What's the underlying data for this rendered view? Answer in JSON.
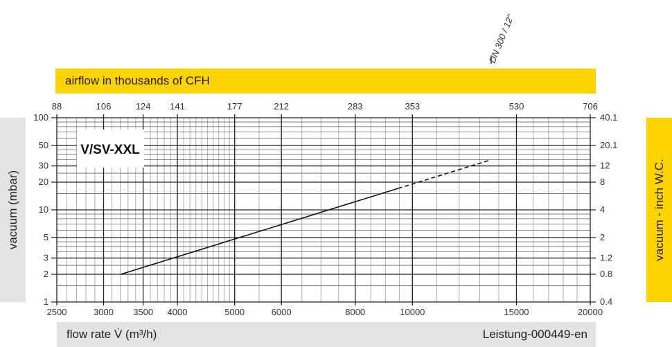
{
  "annotation": "DN 300 / 12\"",
  "top_band_label": "airflow in thousands of CFH",
  "left_band_label": "vacuum (mbar)",
  "right_band_label": "vacuum  - inch W.C.",
  "bottom_label": "flow rate V̇ (m³/h)",
  "doc_id": "Leistung-000449-en",
  "colors": {
    "accent_yellow": "#fdd400",
    "band_gray": "#e3e3e3",
    "line": "#111111"
  },
  "chart_data": {
    "type": "line",
    "title": "V/SV-XXL",
    "xlabel": "flow rate V̇ (m³/h)",
    "ylabel": "vacuum (mbar)",
    "x_scale": "log",
    "y_scale": "log",
    "xlim": [
      2500,
      20000
    ],
    "ylim": [
      1,
      100
    ],
    "grid": true,
    "x_ticks": [
      2500,
      3000,
      3500,
      4000,
      5000,
      6000,
      8000,
      10000,
      15000,
      20000
    ],
    "y_ticks": [
      1,
      2,
      3,
      5,
      10,
      20,
      30,
      50,
      100
    ],
    "top_axis": {
      "label": "airflow in thousands of CFH",
      "ticks": [
        "88",
        "106",
        "124",
        "141",
        "177",
        "212",
        "283",
        "353",
        "530",
        "706"
      ]
    },
    "right_axis": {
      "label": "vacuum  - inch W.C.",
      "ticks": [
        "0.4",
        "0.8",
        "1.2",
        "2",
        "4",
        "8",
        "12",
        "20.1",
        "40.1"
      ]
    },
    "series": [
      {
        "style": "solid",
        "x": [
          3210,
          9460
        ],
        "y": [
          2.0,
          17.1
        ]
      },
      {
        "style": "dashed",
        "x": [
          9460,
          13550
        ],
        "y": [
          17.1,
          34.8
        ]
      }
    ]
  }
}
